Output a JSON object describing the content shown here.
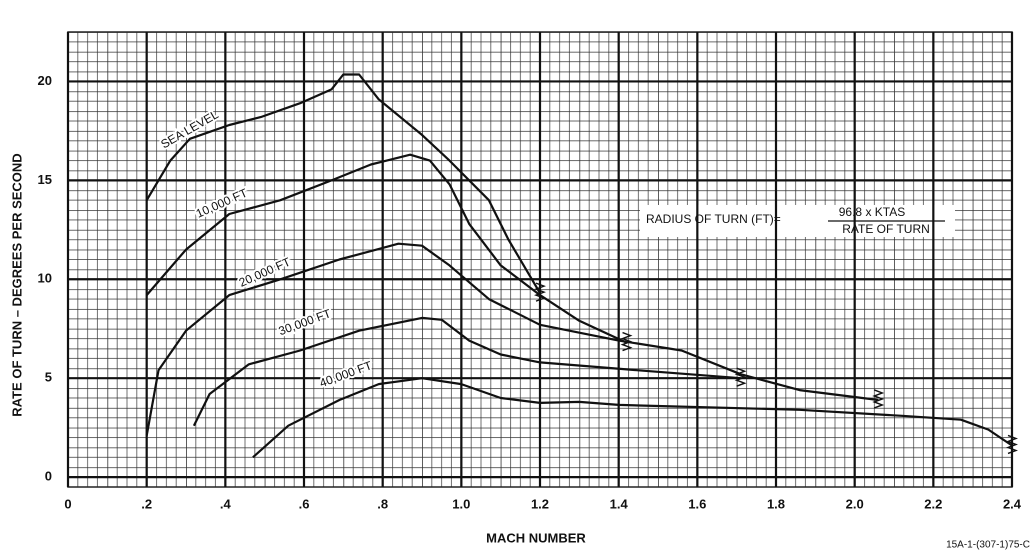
{
  "chart_data": {
    "type": "line",
    "xlabel": "MACH NUMBER",
    "ylabel": "RATE OF TURN – DEGREES PER SECOND",
    "xlim": [
      0,
      2.4
    ],
    "ylim": [
      -0.5,
      22.5
    ],
    "xticks": [
      0,
      {
        "value": 0.2,
        "label": ".2"
      },
      {
        "value": 0.4,
        "label": ".4"
      },
      {
        "value": 0.6,
        "label": ".6"
      },
      {
        "value": 0.8,
        "label": ".8"
      },
      {
        "value": 1.0,
        "label": "1.0"
      },
      1.2,
      1.4,
      1.6,
      1.8,
      {
        "value": 2.0,
        "label": "2.0"
      },
      2.2,
      2.4
    ],
    "yticks": [
      0,
      5,
      10,
      15,
      20
    ],
    "grid": true,
    "series": [
      {
        "name": "SEA LEVEL",
        "color": "#111111",
        "x": [
          0.2,
          0.26,
          0.31,
          0.41,
          0.49,
          0.59,
          0.67,
          0.7,
          0.74,
          0.79,
          0.9,
          0.97,
          1.07,
          1.12,
          1.2
        ],
        "values": [
          14.0,
          16.0,
          17.1,
          17.8,
          18.2,
          18.9,
          19.6,
          20.35,
          20.35,
          19.1,
          17.3,
          16.0,
          14.0,
          12.0,
          9.3
        ]
      },
      {
        "name": "10,000 FT",
        "color": "#111111",
        "x": [
          0.2,
          0.3,
          0.41,
          0.54,
          0.67,
          0.77,
          0.87,
          0.92,
          0.97,
          1.02,
          1.1,
          1.2,
          1.3,
          1.42
        ],
        "values": [
          9.2,
          11.5,
          13.3,
          14.0,
          15.0,
          15.8,
          16.3,
          16.0,
          14.8,
          12.8,
          10.7,
          9.2,
          7.9,
          6.8
        ]
      },
      {
        "name": "20,000 FT",
        "color": "#111111",
        "x": [
          0.2,
          0.23,
          0.3,
          0.41,
          0.54,
          0.69,
          0.84,
          0.9,
          0.97,
          1.07,
          1.2,
          1.4,
          1.56,
          1.71,
          1.86,
          2.06
        ],
        "values": [
          2.1,
          5.4,
          7.4,
          9.2,
          10.0,
          11.0,
          11.8,
          11.7,
          10.7,
          9.0,
          7.7,
          6.9,
          6.4,
          5.2,
          4.4,
          3.9
        ]
      },
      {
        "name": "30,000 FT",
        "color": "#111111",
        "x": [
          0.32,
          0.36,
          0.46,
          0.59,
          0.74,
          0.9,
          0.95,
          1.02,
          1.1,
          1.2,
          1.45,
          1.71
        ],
        "values": [
          2.6,
          4.2,
          5.7,
          6.4,
          7.4,
          8.05,
          7.95,
          6.9,
          6.2,
          5.8,
          5.4,
          5.0
        ]
      },
      {
        "name": "40,000 FT",
        "color": "#111111",
        "x": [
          0.47,
          0.56,
          0.69,
          0.79,
          0.9,
          1.0,
          1.1,
          1.2,
          1.3,
          1.4,
          1.86,
          2.12,
          2.27,
          2.34,
          2.4
        ],
        "values": [
          1.0,
          2.6,
          3.9,
          4.7,
          5.0,
          4.7,
          4.0,
          3.75,
          3.8,
          3.65,
          3.4,
          3.1,
          2.9,
          2.4,
          1.6
        ]
      }
    ],
    "annotation": {
      "lhs": "RADIUS OF TURN (FT)=",
      "numerator": "96.8 x KTAS",
      "denominator": "RATE OF TURN"
    },
    "footnote": "15A-1-(307-1)75-C"
  }
}
